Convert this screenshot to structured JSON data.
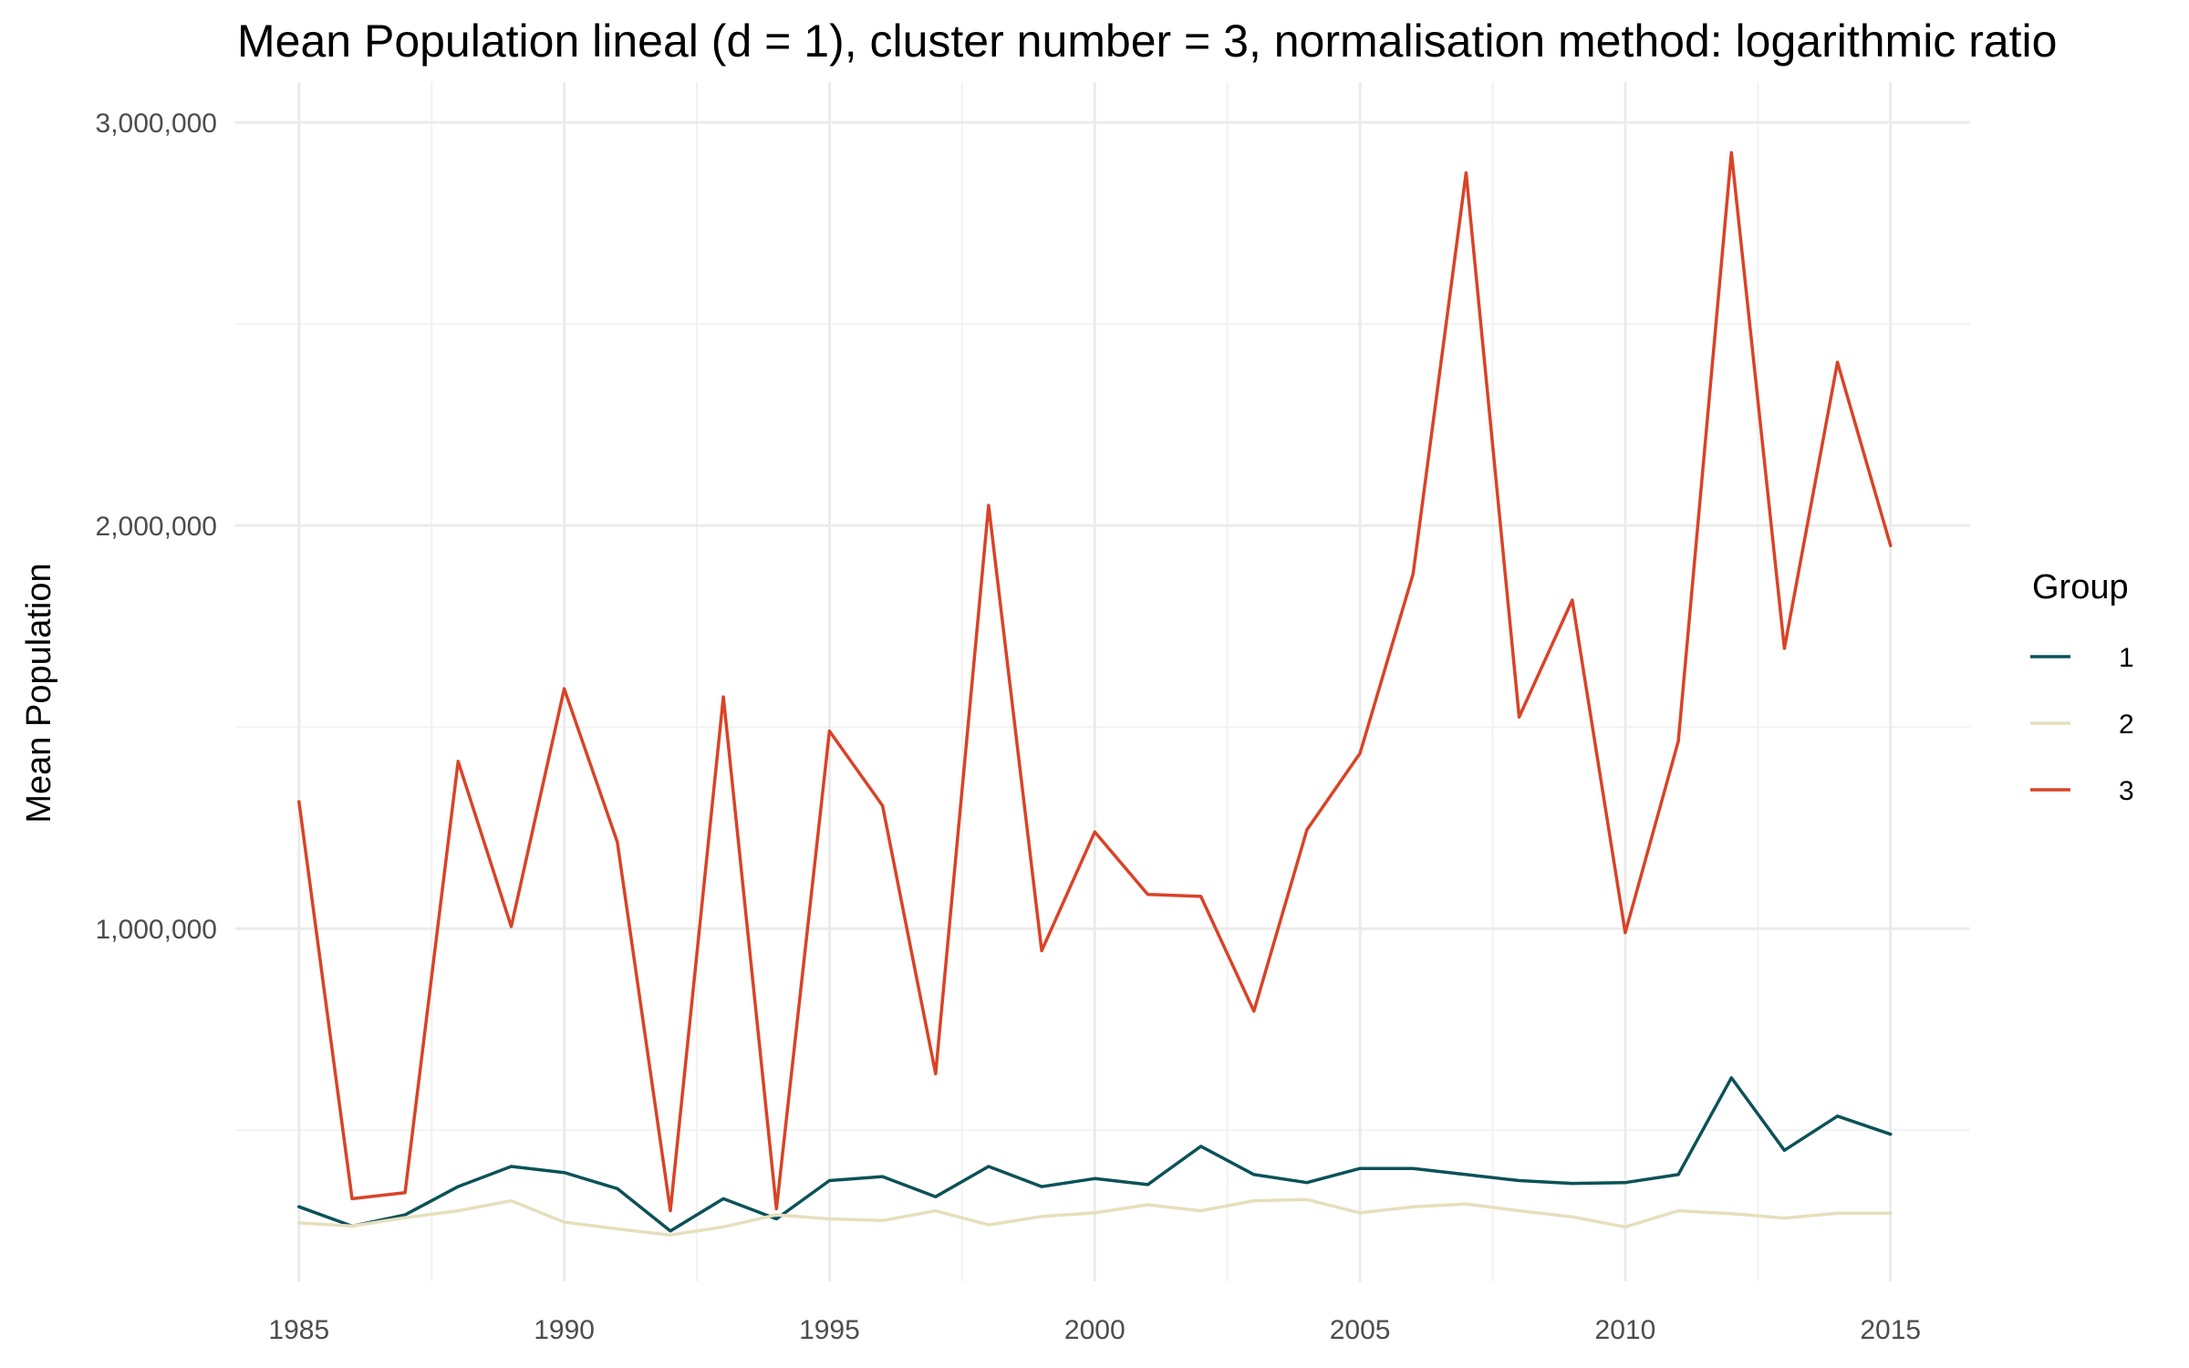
{
  "chart_data": {
    "type": "line",
    "title": "Mean Population lineal (d = 1), cluster number = 3, normalisation method: logarithmic ratio",
    "xlabel": "",
    "ylabel": "Mean Population",
    "x": [
      1985,
      1986,
      1987,
      1988,
      1989,
      1990,
      1991,
      1992,
      1993,
      1994,
      1995,
      1996,
      1997,
      1998,
      1999,
      2000,
      2001,
      2002,
      2003,
      2004,
      2005,
      2006,
      2007,
      2008,
      2009,
      2010,
      2011,
      2012,
      2013,
      2014,
      2015
    ],
    "xlim": [
      1983.8,
      2016.5
    ],
    "ylim": [
      125000,
      3100000
    ],
    "x_ticks": [
      1985,
      1990,
      1995,
      2000,
      2005,
      2010,
      2015
    ],
    "x_tick_labels": [
      "1985",
      "1990",
      "1995",
      "2000",
      "2005",
      "2010",
      "2015"
    ],
    "x_minor_ticks": [
      1987.5,
      1992.5,
      1997.5,
      2002.5,
      2007.5,
      2012.5
    ],
    "y_ticks": [
      1000000,
      2000000,
      3000000
    ],
    "y_tick_labels": [
      "1,000,000",
      "2,000,000",
      "3,000,000"
    ],
    "y_minor_ticks": [
      500000,
      1500000,
      2500000
    ],
    "grid": true,
    "legend": {
      "title": "Group",
      "position": "right"
    },
    "series": [
      {
        "name": "1",
        "color": "#0b5257",
        "values": [
          310000,
          262000,
          290000,
          360000,
          410000,
          395000,
          355000,
          250000,
          330000,
          280000,
          375000,
          385000,
          335000,
          410000,
          360000,
          380000,
          365000,
          460000,
          390000,
          370000,
          405000,
          405000,
          390000,
          375000,
          368000,
          370000,
          390000,
          630000,
          450000,
          535000,
          490000
        ]
      },
      {
        "name": "2",
        "color": "#e6dfbd",
        "values": [
          270000,
          262000,
          283000,
          300000,
          325000,
          272000,
          255000,
          240000,
          260000,
          290000,
          280000,
          276000,
          300000,
          265000,
          286000,
          295000,
          315000,
          300000,
          325000,
          328000,
          295000,
          310000,
          317000,
          300000,
          285000,
          260000,
          300000,
          293000,
          282000,
          294000,
          294000
        ]
      },
      {
        "name": "3",
        "color": "#d94326",
        "values": [
          1315000,
          330000,
          345000,
          1415000,
          1005000,
          1595000,
          1215000,
          300000,
          1575000,
          305000,
          1490000,
          1305000,
          640000,
          2050000,
          945000,
          1240000,
          1085000,
          1080000,
          795000,
          1245000,
          1435000,
          1880000,
          2875000,
          1525000,
          1815000,
          990000,
          1465000,
          2925000,
          1695000,
          2405000,
          1950000
        ]
      }
    ]
  }
}
